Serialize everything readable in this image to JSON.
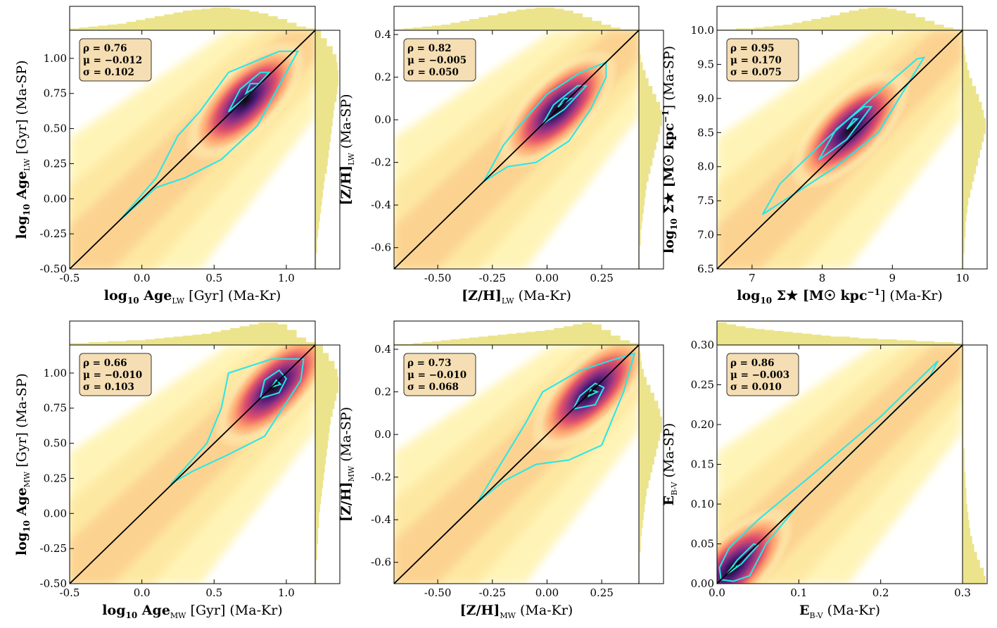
{
  "figure": {
    "description_free": true,
    "colormap": "magma_r",
    "contour_color": "#22e8e8",
    "hist_color": "#ece48c",
    "statbox_fill": "#f5deb3"
  },
  "chart_data": [
    {
      "type": "scatter",
      "style": "density-kde",
      "id": "age-lw",
      "xlabel": "log10 Age_LW [Gyr] (Ma-Kr)",
      "ylabel": "log10 Age_LW [Gyr] (Ma-SP)",
      "xlabel_parts": {
        "pre": "log",
        "pre_sub": "10",
        "main": " Age",
        "sub": "LW",
        "post": " [Gyr] (Ma-Kr)"
      },
      "ylabel_parts": {
        "pre": "log",
        "pre_sub": "10",
        "main": " Age",
        "sub": "LW",
        "post": " [Gyr] (Ma-SP)"
      },
      "xlim": [
        -0.5,
        1.2
      ],
      "ylim": [
        -0.5,
        1.2
      ],
      "xticks": [
        "-0.5",
        "0.0",
        "0.5",
        "1.0"
      ],
      "xtick_values": [
        -0.5,
        0.0,
        0.5,
        1.0
      ],
      "yticks": [
        "-0.50",
        "-0.25",
        "0.00",
        "0.25",
        "0.50",
        "0.75",
        "1.00"
      ],
      "ytick_values": [
        -0.5,
        -0.25,
        0.0,
        0.25,
        0.5,
        0.75,
        1.0
      ],
      "stats": {
        "rho": "ρ = 0.76",
        "mu": "μ = −0.012",
        "sigma": "σ = 0.102"
      },
      "density_peak": [
        0.72,
        0.7
      ],
      "outer_contour": [
        [
          -0.15,
          -0.15
        ],
        [
          0.1,
          0.08
        ],
        [
          0.3,
          0.15
        ],
        [
          0.55,
          0.28
        ],
        [
          0.8,
          0.52
        ],
        [
          1.0,
          0.9
        ],
        [
          1.08,
          1.05
        ],
        [
          0.95,
          1.05
        ],
        [
          0.6,
          0.9
        ],
        [
          0.4,
          0.62
        ],
        [
          0.25,
          0.45
        ],
        [
          0.1,
          0.15
        ],
        [
          -0.15,
          -0.15
        ]
      ],
      "inner_contours": [
        [
          [
            0.6,
            0.62
          ],
          [
            0.75,
            0.75
          ],
          [
            0.88,
            0.9
          ],
          [
            0.82,
            0.9
          ],
          [
            0.68,
            0.78
          ],
          [
            0.6,
            0.62
          ]
        ],
        [
          [
            0.72,
            0.75
          ],
          [
            0.82,
            0.82
          ],
          [
            0.75,
            0.82
          ],
          [
            0.72,
            0.75
          ]
        ]
      ],
      "marginal_top": [
        2,
        3,
        4,
        5,
        6,
        7,
        9,
        11,
        13,
        15,
        17,
        19,
        21,
        22,
        23,
        24,
        24,
        23,
        22,
        20,
        18,
        15,
        12,
        8,
        4,
        2
      ],
      "marginal_right": [
        1,
        1,
        2,
        2,
        3,
        4,
        5,
        6,
        7,
        8,
        9,
        10,
        12,
        13,
        14,
        15,
        16,
        17,
        18,
        19,
        20,
        22,
        23,
        24,
        24,
        23,
        22,
        18,
        12,
        6
      ]
    },
    {
      "type": "scatter",
      "style": "density-kde",
      "id": "zh-lw",
      "xlabel": "[Z/H]_LW (Ma-Kr)",
      "ylabel": "[Z/H]_LW (Ma-SP)",
      "xlabel_parts": {
        "pre": "",
        "pre_sub": "",
        "main": "[Z/H]",
        "sub": "LW",
        "post": " (Ma-Kr)"
      },
      "ylabel_parts": {
        "pre": "",
        "pre_sub": "",
        "main": "[Z/H]",
        "sub": "LW",
        "post": " (Ma-SP)"
      },
      "xlim": [
        -0.7,
        0.42
      ],
      "ylim": [
        -0.7,
        0.42
      ],
      "xticks": [
        "-0.50",
        "-0.25",
        "0.00",
        "0.25"
      ],
      "xtick_values": [
        -0.5,
        -0.25,
        0.0,
        0.25
      ],
      "yticks": [
        "-0.6",
        "-0.4",
        "-0.2",
        "0.0",
        "0.2",
        "0.4"
      ],
      "ytick_values": [
        -0.6,
        -0.4,
        -0.2,
        0.0,
        0.2,
        0.4
      ],
      "stats": {
        "rho": "ρ = 0.82",
        "mu": "μ = −0.005",
        "sigma": "σ = 0.050"
      },
      "density_peak": [
        0.05,
        0.05
      ],
      "outer_contour": [
        [
          -0.29,
          -0.29
        ],
        [
          -0.18,
          -0.22
        ],
        [
          -0.05,
          -0.2
        ],
        [
          0.1,
          -0.1
        ],
        [
          0.2,
          0.05
        ],
        [
          0.27,
          0.2
        ],
        [
          0.27,
          0.27
        ],
        [
          0.15,
          0.22
        ],
        [
          0.0,
          0.12
        ],
        [
          -0.12,
          -0.02
        ],
        [
          -0.2,
          -0.12
        ],
        [
          -0.29,
          -0.29
        ]
      ],
      "inner_contours": [
        [
          [
            -0.02,
            -0.02
          ],
          [
            0.08,
            0.05
          ],
          [
            0.18,
            0.16
          ],
          [
            0.14,
            0.16
          ],
          [
            0.03,
            0.07
          ],
          [
            -0.02,
            -0.02
          ]
        ],
        [
          [
            0.05,
            0.06
          ],
          [
            0.11,
            0.1
          ],
          [
            0.08,
            0.1
          ],
          [
            0.05,
            0.06
          ]
        ]
      ],
      "marginal_top": [
        1,
        2,
        3,
        4,
        5,
        6,
        8,
        10,
        12,
        14,
        16,
        18,
        20,
        22,
        23,
        24,
        24,
        23,
        21,
        18,
        14,
        10,
        6,
        3,
        1,
        1
      ],
      "marginal_right": [
        1,
        1,
        1,
        2,
        2,
        3,
        4,
        5,
        6,
        7,
        8,
        10,
        12,
        14,
        16,
        18,
        20,
        22,
        24,
        24,
        22,
        18,
        14,
        10,
        7,
        4,
        2,
        1,
        1,
        1
      ]
    },
    {
      "type": "scatter",
      "style": "density-kde",
      "id": "sigma-star",
      "xlabel": "log10 Σ★ [M☉ kpc−1] (Ma-Kr)",
      "ylabel": "log10 Σ★ [M☉ kpc−1] (Ma-SP)",
      "xlabel_parts": {
        "pre": "log",
        "pre_sub": "10",
        "main": " Σ★ [M☉ kpc",
        "sub": "",
        "sup": "−1",
        "post": "] (Ma-Kr)"
      },
      "ylabel_parts": {
        "pre": "log",
        "pre_sub": "10",
        "main": " Σ★ [M☉ kpc",
        "sub": "",
        "sup": "−1",
        "post": "] (Ma-SP)"
      },
      "xlim": [
        6.5,
        10.0
      ],
      "ylim": [
        6.5,
        10.0
      ],
      "xticks": [
        "7",
        "8",
        "9",
        "10"
      ],
      "xtick_values": [
        7,
        8,
        9,
        10
      ],
      "yticks": [
        "6.5",
        "7.0",
        "7.5",
        "8.0",
        "8.5",
        "9.0",
        "9.5",
        "10.0"
      ],
      "ytick_values": [
        6.5,
        7.0,
        7.5,
        8.0,
        8.5,
        9.0,
        9.5,
        10.0
      ],
      "stats": {
        "rho": "ρ = 0.95",
        "mu": "μ = 0.170",
        "sigma": "σ = 0.075"
      },
      "density_peak": [
        8.4,
        8.55
      ],
      "outer_contour": [
        [
          7.15,
          7.3
        ],
        [
          7.6,
          7.6
        ],
        [
          8.2,
          8.0
        ],
        [
          8.8,
          8.5
        ],
        [
          9.45,
          9.6
        ],
        [
          9.35,
          9.58
        ],
        [
          8.7,
          9.0
        ],
        [
          8.0,
          8.35
        ],
        [
          7.4,
          7.75
        ],
        [
          7.15,
          7.3
        ]
      ],
      "inner_contours": [
        [
          [
            7.95,
            8.1
          ],
          [
            8.35,
            8.4
          ],
          [
            8.7,
            8.88
          ],
          [
            8.6,
            8.88
          ],
          [
            8.2,
            8.55
          ],
          [
            7.95,
            8.1
          ]
        ],
        [
          [
            8.35,
            8.55
          ],
          [
            8.5,
            8.7
          ],
          [
            8.45,
            8.7
          ],
          [
            8.35,
            8.55
          ]
        ]
      ],
      "marginal_top": [
        1,
        1,
        2,
        2,
        3,
        4,
        5,
        6,
        8,
        10,
        12,
        14,
        16,
        19,
        21,
        23,
        24,
        24,
        23,
        21,
        18,
        14,
        10,
        6,
        3,
        1
      ],
      "marginal_right": [
        1,
        1,
        2,
        2,
        3,
        3,
        4,
        5,
        6,
        8,
        10,
        12,
        14,
        16,
        18,
        20,
        22,
        24,
        24,
        22,
        20,
        17,
        14,
        10,
        7,
        5,
        3,
        2,
        1,
        1
      ]
    },
    {
      "type": "scatter",
      "style": "density-kde",
      "id": "age-mw",
      "xlabel": "log10 Age_MW [Gyr] (Ma-Kr)",
      "ylabel": "log10 Age_MW [Gyr] (Ma-SP)",
      "xlabel_parts": {
        "pre": "log",
        "pre_sub": "10",
        "main": " Age",
        "sub": "MW",
        "post": " [Gyr] (Ma-Kr)"
      },
      "ylabel_parts": {
        "pre": "log",
        "pre_sub": "10",
        "main": " Age",
        "sub": "MW",
        "post": " [Gyr] (Ma-SP)"
      },
      "xlim": [
        -0.5,
        1.2
      ],
      "ylim": [
        -0.5,
        1.2
      ],
      "xticks": [
        "-0.5",
        "0.0",
        "0.5",
        "1.0"
      ],
      "xtick_values": [
        -0.5,
        0.0,
        0.5,
        1.0
      ],
      "yticks": [
        "-0.50",
        "-0.25",
        "0.00",
        "0.25",
        "0.50",
        "0.75",
        "1.00"
      ],
      "ytick_values": [
        -0.5,
        -0.25,
        0.0,
        0.25,
        0.5,
        0.75,
        1.0
      ],
      "stats": {
        "rho": "ρ = 0.66",
        "mu": "μ = −0.010",
        "sigma": "σ = 0.103"
      },
      "density_peak": [
        0.92,
        0.9
      ],
      "outer_contour": [
        [
          0.2,
          0.21
        ],
        [
          0.35,
          0.3
        ],
        [
          0.6,
          0.42
        ],
        [
          0.85,
          0.55
        ],
        [
          1.1,
          0.95
        ],
        [
          1.12,
          1.1
        ],
        [
          0.9,
          1.1
        ],
        [
          0.6,
          1.0
        ],
        [
          0.55,
          0.75
        ],
        [
          0.45,
          0.5
        ],
        [
          0.2,
          0.21
        ]
      ],
      "inner_contours": [
        [
          [
            0.82,
            0.82
          ],
          [
            0.95,
            0.86
          ],
          [
            1.0,
            0.96
          ],
          [
            0.95,
            1.02
          ],
          [
            0.85,
            0.95
          ],
          [
            0.82,
            0.82
          ]
        ],
        [
          [
            0.9,
            0.9
          ],
          [
            0.96,
            0.92
          ],
          [
            0.93,
            0.95
          ],
          [
            0.9,
            0.9
          ]
        ]
      ],
      "marginal_top": [
        2,
        2,
        3,
        3,
        4,
        4,
        5,
        5,
        6,
        7,
        8,
        9,
        10,
        11,
        12,
        14,
        16,
        18,
        20,
        22,
        24,
        24,
        22,
        16,
        8,
        3
      ],
      "marginal_right": [
        1,
        1,
        1,
        2,
        2,
        3,
        3,
        4,
        4,
        5,
        6,
        7,
        8,
        9,
        10,
        11,
        12,
        13,
        14,
        15,
        16,
        18,
        20,
        22,
        24,
        24,
        23,
        20,
        14,
        8
      ]
    },
    {
      "type": "scatter",
      "style": "density-kde",
      "id": "zh-mw",
      "xlabel": "[Z/H]_MW (Ma-Kr)",
      "ylabel": "[Z/H]_MW (Ma-SP)",
      "xlabel_parts": {
        "pre": "",
        "pre_sub": "",
        "main": "[Z/H]",
        "sub": "MW",
        "post": " (Ma-Kr)"
      },
      "ylabel_parts": {
        "pre": "",
        "pre_sub": "",
        "main": "[Z/H]",
        "sub": "MW",
        "post": " (Ma-SP)"
      },
      "xlim": [
        -0.7,
        0.42
      ],
      "ylim": [
        -0.7,
        0.42
      ],
      "xticks": [
        "-0.50",
        "-0.25",
        "0.00",
        "0.25"
      ],
      "xtick_values": [
        -0.5,
        -0.25,
        0.0,
        0.25
      ],
      "yticks": [
        "-0.6",
        "-0.4",
        "-0.2",
        "0.0",
        "0.2",
        "0.4"
      ],
      "ytick_values": [
        -0.6,
        -0.4,
        -0.2,
        0.0,
        0.2,
        0.4
      ],
      "stats": {
        "rho": "ρ = 0.73",
        "mu": "μ = −0.010",
        "sigma": "σ = 0.068"
      },
      "density_peak": [
        0.2,
        0.2
      ],
      "outer_contour": [
        [
          -0.32,
          -0.32
        ],
        [
          -0.2,
          -0.22
        ],
        [
          -0.05,
          -0.14
        ],
        [
          0.1,
          -0.12
        ],
        [
          0.25,
          -0.05
        ],
        [
          0.35,
          0.2
        ],
        [
          0.4,
          0.38
        ],
        [
          0.3,
          0.35
        ],
        [
          0.15,
          0.3
        ],
        [
          -0.02,
          0.2
        ],
        [
          -0.1,
          0.05
        ],
        [
          -0.32,
          -0.32
        ]
      ],
      "inner_contours": [
        [
          [
            0.12,
            0.12
          ],
          [
            0.22,
            0.14
          ],
          [
            0.26,
            0.22
          ],
          [
            0.22,
            0.24
          ],
          [
            0.15,
            0.18
          ],
          [
            0.12,
            0.12
          ]
        ],
        [
          [
            0.19,
            0.18
          ],
          [
            0.23,
            0.2
          ],
          [
            0.2,
            0.21
          ],
          [
            0.19,
            0.18
          ]
        ]
      ],
      "marginal_top": [
        1,
        1,
        2,
        3,
        4,
        5,
        6,
        7,
        8,
        9,
        10,
        11,
        12,
        13,
        14,
        15,
        16,
        18,
        20,
        22,
        24,
        22,
        16,
        10,
        5,
        2
      ],
      "marginal_right": [
        1,
        1,
        1,
        1,
        2,
        2,
        3,
        4,
        5,
        6,
        7,
        8,
        10,
        12,
        14,
        16,
        18,
        20,
        22,
        24,
        24,
        22,
        20,
        16,
        12,
        8,
        5,
        3,
        2,
        1
      ]
    },
    {
      "type": "scatter",
      "style": "density-kde",
      "id": "ebv",
      "xlabel": "E_B-V (Ma-Kr)",
      "ylabel": "E_B-V (Ma-SP)",
      "xlabel_parts": {
        "pre": "",
        "pre_sub": "",
        "main": "E",
        "sub": "B-V",
        "post": " (Ma-Kr)"
      },
      "ylabel_parts": {
        "pre": "",
        "pre_sub": "",
        "main": "E",
        "sub": "B-V",
        "post": " (Ma-SP)"
      },
      "xlim": [
        0.0,
        0.3
      ],
      "ylim": [
        0.0,
        0.3
      ],
      "xticks": [
        "0.0",
        "0.1",
        "0.2",
        "0.3"
      ],
      "xtick_values": [
        0.0,
        0.1,
        0.2,
        0.3
      ],
      "yticks": [
        "0.00",
        "0.05",
        "0.10",
        "0.15",
        "0.20",
        "0.25",
        "0.30"
      ],
      "ytick_values": [
        0.0,
        0.05,
        0.1,
        0.15,
        0.2,
        0.25,
        0.3
      ],
      "stats": {
        "rho": "ρ = 0.86",
        "mu": "μ = −0.003",
        "sigma": "σ = 0.010"
      },
      "density_peak": [
        0.02,
        0.02
      ],
      "outer_contour": [
        [
          0.003,
          0.02
        ],
        [
          0.015,
          0.045
        ],
        [
          0.05,
          0.08
        ],
        [
          0.12,
          0.14
        ],
        [
          0.2,
          0.21
        ],
        [
          0.27,
          0.28
        ],
        [
          0.26,
          0.26
        ],
        [
          0.18,
          0.18
        ],
        [
          0.1,
          0.1
        ],
        [
          0.06,
          0.05
        ],
        [
          0.04,
          0.01
        ],
        [
          0.02,
          0.003
        ],
        [
          0.005,
          0.005
        ],
        [
          0.003,
          0.02
        ]
      ],
      "inner_contours": [
        [
          [
            0.012,
            0.012
          ],
          [
            0.03,
            0.025
          ],
          [
            0.05,
            0.048
          ],
          [
            0.045,
            0.05
          ],
          [
            0.025,
            0.03
          ],
          [
            0.012,
            0.012
          ]
        ],
        [
          [
            0.018,
            0.016
          ],
          [
            0.026,
            0.022
          ],
          [
            0.02,
            0.022
          ],
          [
            0.018,
            0.016
          ]
        ]
      ],
      "marginal_top": [
        24,
        22,
        20,
        18,
        17,
        16,
        15,
        14,
        13,
        12,
        11,
        10,
        9,
        9,
        8,
        7,
        7,
        6,
        6,
        5,
        5,
        4,
        4,
        3,
        3,
        2
      ],
      "marginal_right": [
        24,
        22,
        18,
        15,
        12,
        10,
        8,
        7,
        6,
        5,
        4,
        4,
        3,
        3,
        2,
        2,
        2,
        1,
        1,
        1,
        1,
        1,
        1,
        1,
        1,
        1,
        1,
        1,
        1,
        1
      ]
    }
  ]
}
